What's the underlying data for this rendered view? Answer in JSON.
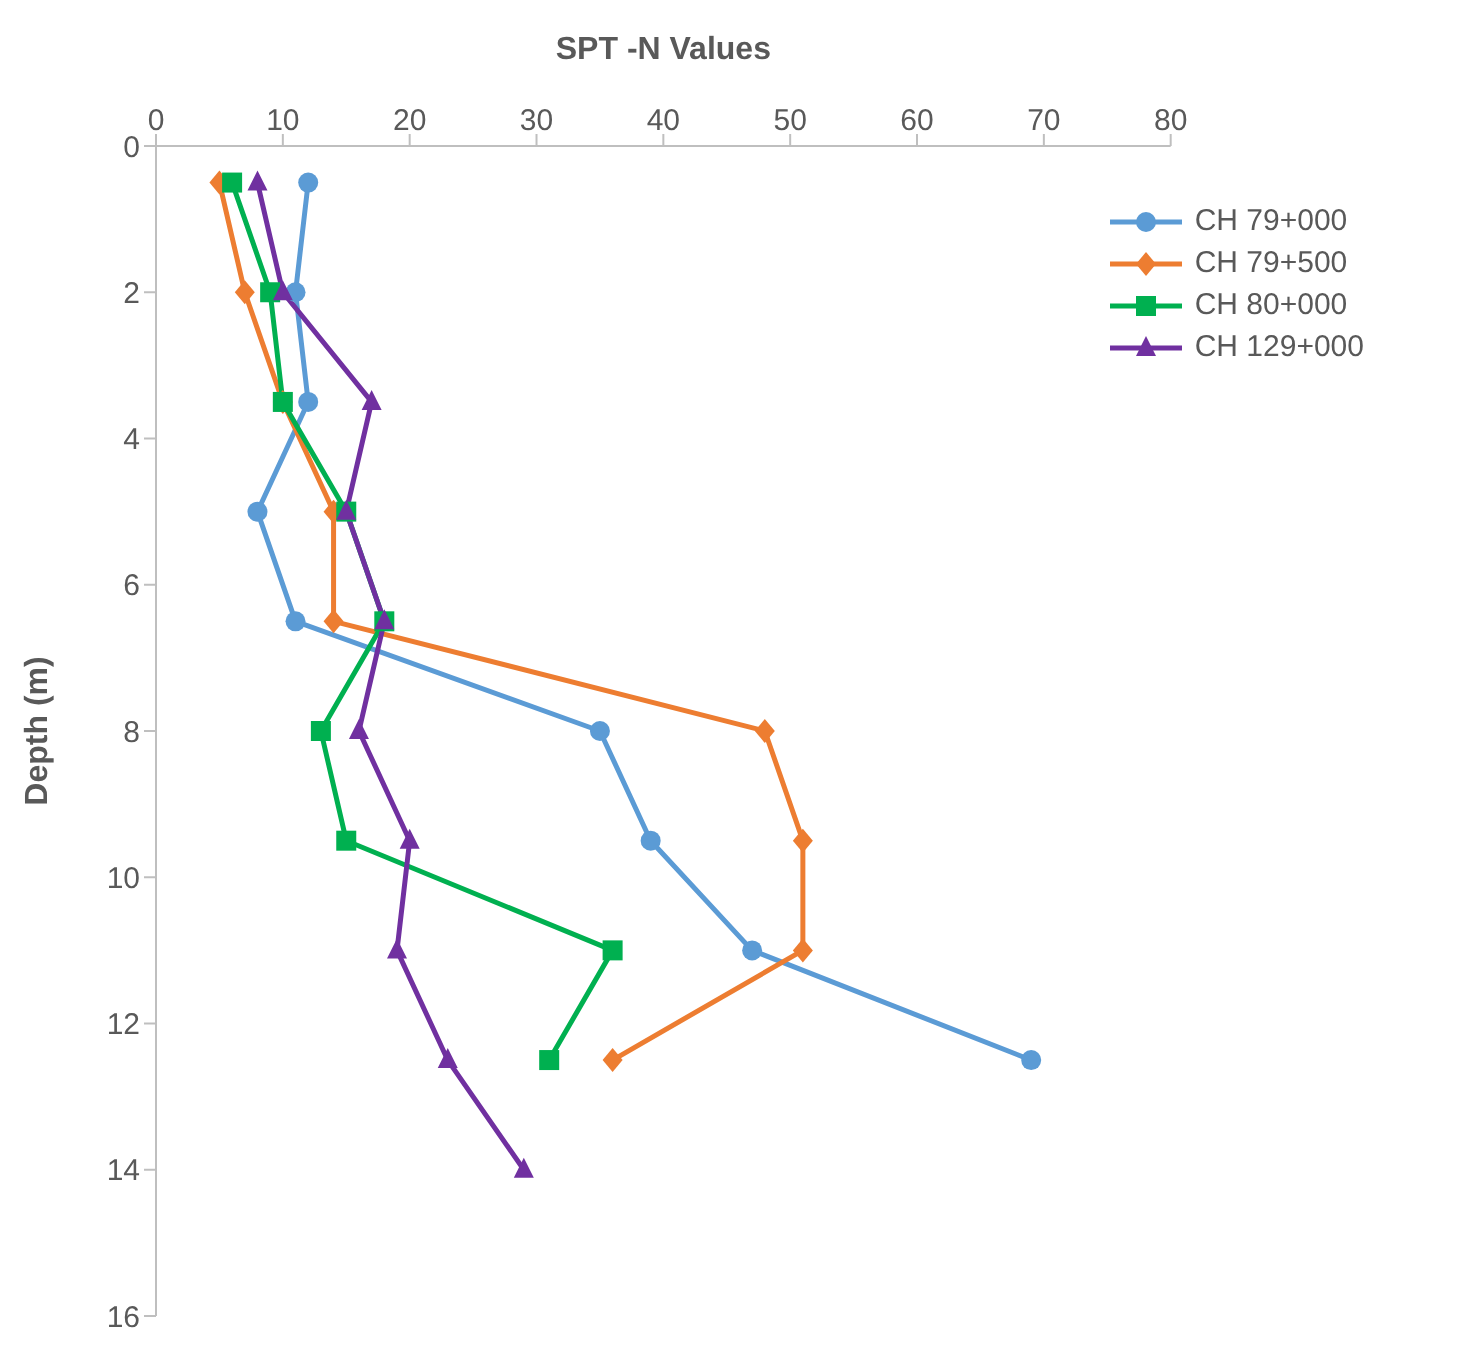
{
  "chart_data": {
    "type": "line",
    "xlabel": "SPT -N Values",
    "ylabel": "Depth (m)",
    "xlim": [
      0,
      80
    ],
    "xticks": [
      0,
      10,
      20,
      30,
      40,
      50,
      60,
      70,
      80
    ],
    "ylim": [
      16,
      0
    ],
    "yticks": [
      0,
      2,
      4,
      6,
      8,
      10,
      12,
      14,
      16
    ],
    "grid": false,
    "legend": "top right",
    "line_style": "solid",
    "series": [
      {
        "name": "CH 79+000",
        "color": "#5b9bd5",
        "marker": "circle",
        "x": [
          12,
          11,
          12,
          8,
          11,
          35,
          39,
          47,
          69
        ],
        "values": [
          0.5,
          2,
          3.5,
          5,
          6.5,
          8,
          9.5,
          11,
          12.5
        ]
      },
      {
        "name": "CH 79+500",
        "color": "#ed7d31",
        "marker": "diamond",
        "x": [
          5,
          7,
          10,
          14,
          14,
          48,
          51,
          51,
          36
        ],
        "values": [
          0.5,
          2,
          3.5,
          5,
          6.5,
          8,
          9.5,
          11,
          12.5
        ]
      },
      {
        "name": "CH 80+000",
        "color": "#00b050",
        "marker": "square",
        "x": [
          6,
          9,
          10,
          15,
          18,
          13,
          15,
          36,
          31
        ],
        "values": [
          0.5,
          2,
          3.5,
          5,
          6.5,
          8,
          9.5,
          11,
          12.5
        ]
      },
      {
        "name": "CH 129+000",
        "color": "#7030a0",
        "marker": "triangle",
        "x": [
          8,
          10,
          17,
          15,
          18,
          16,
          20,
          19,
          23,
          29
        ],
        "values": [
          0.5,
          2,
          3.5,
          5,
          6.5,
          8,
          9.5,
          11,
          12.5,
          14
        ]
      }
    ]
  }
}
